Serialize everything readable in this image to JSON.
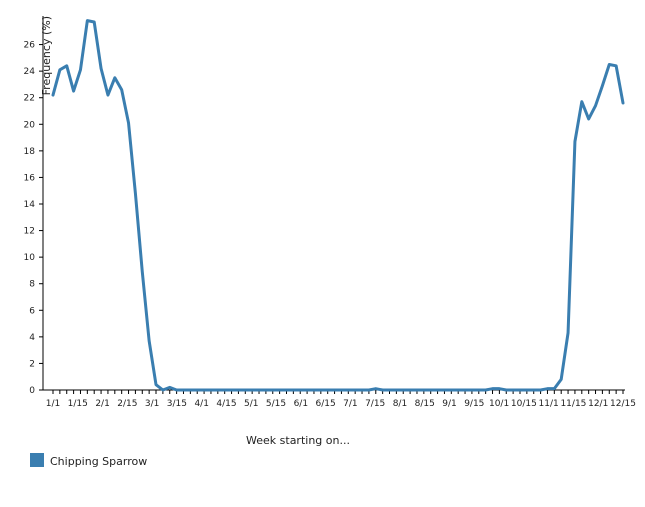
{
  "chart_data": {
    "type": "line",
    "xlabel": "Week starting on...",
    "ylabel": "Frequency (%)",
    "ylim": [
      0,
      28
    ],
    "yticks": [
      0,
      2,
      4,
      6,
      8,
      10,
      12,
      14,
      16,
      18,
      20,
      22,
      24,
      26
    ],
    "xtick_labels": [
      "1/1",
      "1/15",
      "2/1",
      "2/15",
      "3/1",
      "3/15",
      "4/1",
      "4/15",
      "5/1",
      "5/15",
      "6/1",
      "6/15",
      "7/1",
      "7/15",
      "8/1",
      "8/15",
      "9/1",
      "9/15",
      "10/1",
      "10/15",
      "11/1",
      "11/15",
      "12/1",
      "12/15"
    ],
    "legend_position": "bottom-left",
    "grid": false,
    "series": [
      {
        "name": "Chipping Sparrow",
        "color": "#3a7eb0",
        "values": [
          22.2,
          24.1,
          24.4,
          22.5,
          24.1,
          27.8,
          27.7,
          24.2,
          22.2,
          23.5,
          22.6,
          20.1,
          14.8,
          8.9,
          3.7,
          0.4,
          0.0,
          0.2,
          0.0,
          0.0,
          0.0,
          0.0,
          0.0,
          0.0,
          0.0,
          0.0,
          0.0,
          0.0,
          0.0,
          0.0,
          0.0,
          0.0,
          0.0,
          0.0,
          0.0,
          0.0,
          0.0,
          0.0,
          0.0,
          0.0,
          0.0,
          0.0,
          0.0,
          0.0,
          0.0,
          0.0,
          0.0,
          0.1,
          0.0,
          0.0,
          0.0,
          0.0,
          0.0,
          0.0,
          0.0,
          0.0,
          0.0,
          0.0,
          0.0,
          0.0,
          0.0,
          0.0,
          0.0,
          0.0,
          0.1,
          0.1,
          0.0,
          0.0,
          0.0,
          0.0,
          0.0,
          0.0,
          0.1,
          0.1,
          0.8,
          4.3,
          18.7,
          21.7,
          20.4,
          21.4,
          22.9,
          24.5,
          24.4,
          21.6
        ]
      }
    ]
  }
}
